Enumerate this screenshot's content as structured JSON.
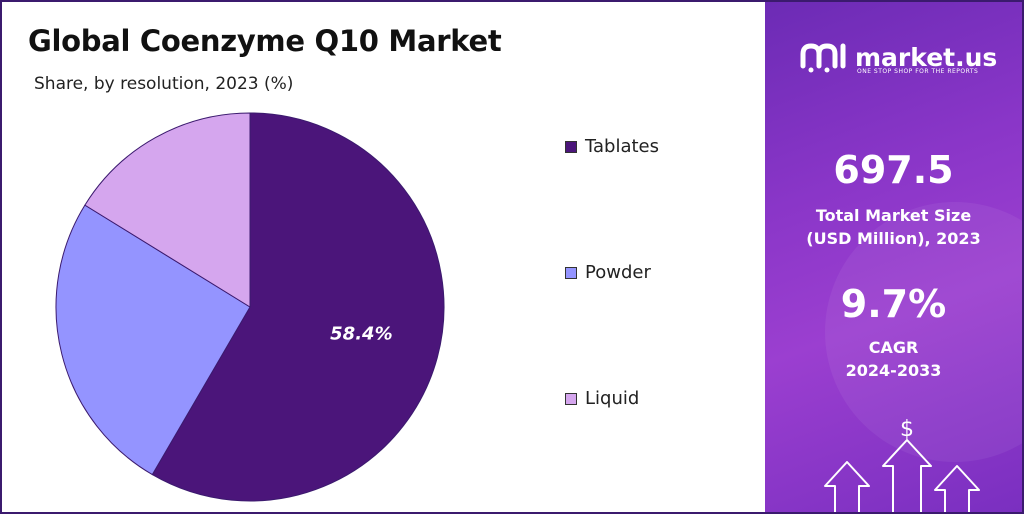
{
  "header": {
    "title": "Global Coenzyme Q10 Market",
    "subtitle": "Share, by resolution, 2023 (%)"
  },
  "brand": {
    "name": "market.us",
    "tagline": "ONE STOP SHOP FOR THE REPORTS"
  },
  "stats": {
    "market_size_value": "697.5",
    "market_size_label_1": "Total Market Size",
    "market_size_label_2": "(USD Million), 2023",
    "cagr_value": "9.7%",
    "cagr_label_1": "CAGR",
    "cagr_label_2": "2024-2033",
    "icon_symbol": "$"
  },
  "chart_data": {
    "type": "pie",
    "title": "Global Coenzyme Q10 Market",
    "subtitle": "Share, by resolution, 2023 (%)",
    "categories": [
      "Tablates",
      "Powder",
      "Liquid"
    ],
    "values": [
      58.4,
      25.4,
      16.2
    ],
    "colors": [
      "#4b157a",
      "#9494ff",
      "#d5a6ee"
    ],
    "data_labels": [
      "58.4%",
      "",
      ""
    ],
    "legend_position": "right"
  }
}
